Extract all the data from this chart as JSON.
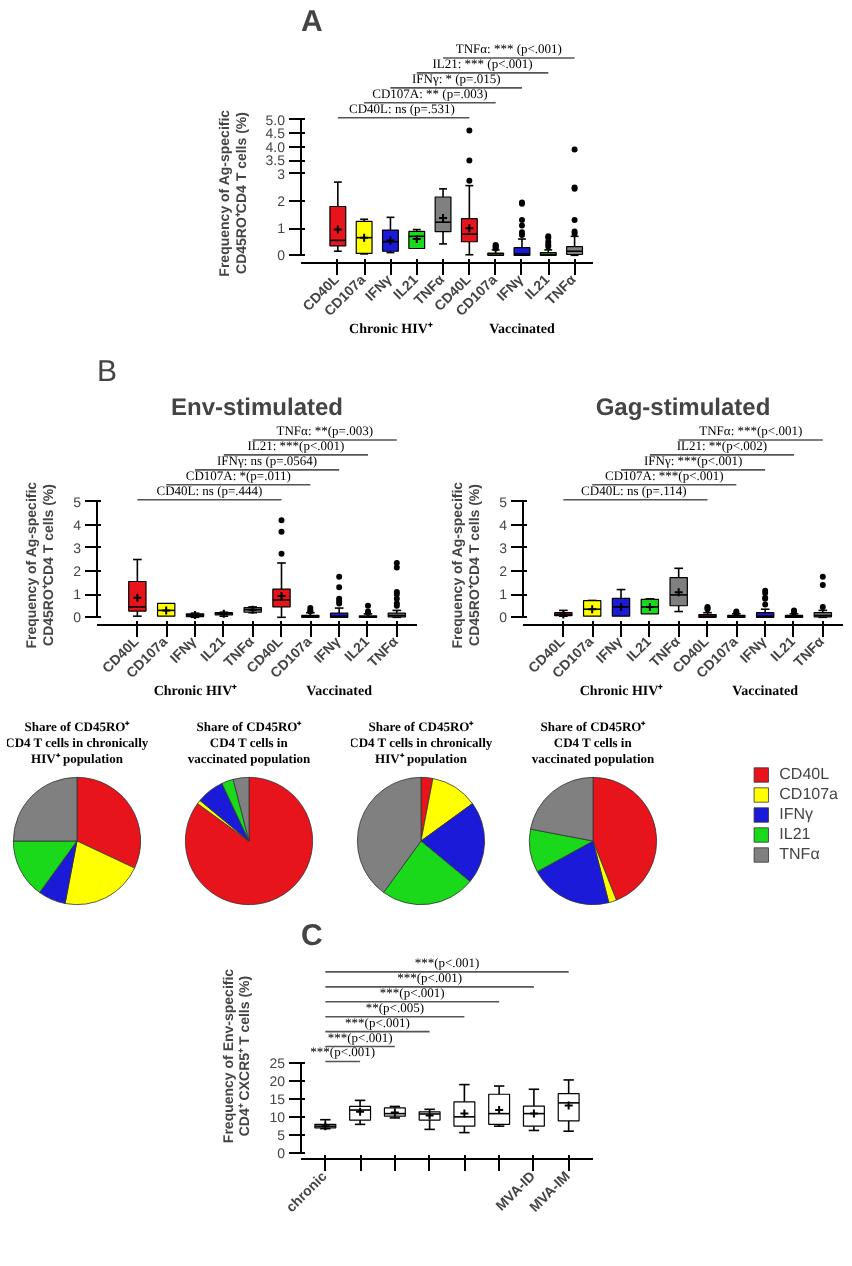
{
  "chart_data": [
    {
      "type": "box",
      "title": "A",
      "ylabel": "Frequency of Ag-specific\nCD45RO⁺CD4 T cells (%)",
      "categories": [
        "CD40L",
        "CD107a",
        "IFNγ",
        "IL21",
        "TNFα",
        "CD40L",
        "CD107a",
        "IFNγ",
        "IL21",
        "TNFα"
      ],
      "ylim": [
        0,
        5
      ],
      "yticks": [
        0,
        1,
        2,
        3,
        {
          "value": 3.5,
          "label": "3.5"
        },
        {
          "value": 4,
          "label": "4.0"
        },
        {
          "value": 4.5,
          "label": "4.5"
        },
        {
          "value": 5,
          "label": "5.0"
        }
      ],
      "marker": "circle",
      "annotations": [
        "CD40L: ns  (p=.531)",
        "CD107A: ** (p=.003)",
        "IFNγ: * (p=.015)",
        "IL21: *** (p<.001)",
        "TNFα: *** (p<.001)",
        "Chronic HIV⁺",
        "Vaccinated"
      ],
      "series": [
        {
          "colors": [
            "#e8141c",
            "#ffff00",
            "#1a1ad8",
            "#1ad81a",
            "#808080",
            "#e8141c",
            "#ffff00",
            "#1a1ad8",
            "#1ad81a",
            "#808080"
          ],
          "boxes": [
            {
              "low": 0.15,
              "q1": 0.35,
              "median": 0.55,
              "q3": 1.8,
              "high": 2.7,
              "mean": 0.95
            },
            {
              "low": 0.05,
              "q1": 0.07,
              "median": 0.65,
              "q3": 1.25,
              "high": 1.33,
              "mean": 0.65
            },
            {
              "low": 0.1,
              "q1": 0.15,
              "median": 0.5,
              "q3": 0.93,
              "high": 1.4,
              "mean": 0.55
            },
            {
              "low": 0.25,
              "q1": 0.25,
              "median": 0.7,
              "q3": 0.88,
              "high": 0.95,
              "mean": 0.6
            },
            {
              "low": 0.42,
              "q1": 0.87,
              "median": 1.22,
              "q3": 2.15,
              "high": 2.45,
              "mean": 1.38
            },
            {
              "low": 0.02,
              "q1": 0.5,
              "median": 0.78,
              "q3": 1.35,
              "high": 2.57,
              "mean": 1.0,
              "outliers": [
                2.75,
                3.5,
                4.6
              ]
            },
            {
              "low": 0,
              "q1": 0,
              "median": 0.05,
              "q3": 0.08,
              "high": 0.2,
              "outliers": [
                0.25,
                0.3,
                0.35,
                0.38
              ]
            },
            {
              "low": 0,
              "q1": 0,
              "median": 0.05,
              "q3": 0.28,
              "high": 0.6,
              "outliers": [
                0.75,
                0.85,
                1.1,
                1.3,
                1.9,
                1.95
              ]
            },
            {
              "low": 0,
              "q1": 0,
              "median": 0.03,
              "q3": 0.1,
              "high": 0.2,
              "outliers": [
                0.32,
                0.4,
                0.5,
                0.65,
                0.7
              ]
            },
            {
              "low": 0,
              "q1": 0.03,
              "median": 0.15,
              "q3": 0.32,
              "high": 0.7,
              "outliers": [
                0.8,
                0.88,
                1.3,
                2.45,
                2.5,
                3.9
              ]
            }
          ]
        }
      ]
    },
    {
      "type": "box",
      "title": "Env-stimulated",
      "ylabel": "Frequency of Ag-specific\nCD45RO⁺CD4 T cells (%)",
      "categories": [
        "CD40L",
        "CD107a",
        "IFNγ",
        "IL21",
        "TNFα",
        "CD40L",
        "CD107a",
        "IFNγ",
        "IL21",
        "TNFα"
      ],
      "ylim": [
        0,
        5
      ],
      "yticks": [
        0,
        1,
        2,
        3,
        4,
        5
      ],
      "marker": "circle",
      "annotations": [
        "B",
        "CD40L: ns (p=.444)",
        "CD107A: *(p=.011)",
        "IFNγ: ns (p=.0564)",
        "IL21: ***(p<.001)",
        "TNFα: **(p=.003)",
        "Chronic HIV⁺",
        "Vaccinated"
      ],
      "series": [
        {
          "colors": [
            "#e8141c",
            "#ffff00",
            "#1a1ad8",
            "#1ad81a",
            "#808080",
            "#e8141c",
            "#ffff00",
            "#1a1ad8",
            "#1ad81a",
            "#808080"
          ],
          "boxes": [
            {
              "low": 0.05,
              "q1": 0.27,
              "median": 0.45,
              "q3": 1.55,
              "high": 2.5,
              "mean": 0.85
            },
            {
              "low": 0.05,
              "q1": 0.05,
              "median": 0.3,
              "q3": 0.6,
              "high": 0.6,
              "mean": 0.3
            },
            {
              "low": 0,
              "q1": 0.03,
              "median": 0.1,
              "q3": 0.15,
              "high": 0.18,
              "mean": 0.1
            },
            {
              "low": 0.05,
              "q1": 0.1,
              "median": 0.15,
              "q3": 0.2,
              "high": 0.22,
              "mean": 0.15
            },
            {
              "low": 0.2,
              "q1": 0.22,
              "median": 0.33,
              "q3": 0.42,
              "high": 0.45,
              "mean": 0.33
            },
            {
              "low": 0,
              "q1": 0.45,
              "median": 0.75,
              "q3": 1.22,
              "high": 2.35,
              "mean": 0.92,
              "outliers": [
                2.75,
                3.7,
                4.2
              ]
            },
            {
              "low": 0,
              "q1": 0,
              "median": 0.03,
              "q3": 0.08,
              "high": 0.2,
              "outliers": [
                0.25,
                0.3,
                0.4
              ]
            },
            {
              "low": 0,
              "q1": 0,
              "median": 0.05,
              "q3": 0.18,
              "high": 0.4,
              "outliers": [
                0.6,
                0.7,
                0.8,
                1.3,
                1.75
              ]
            },
            {
              "low": 0,
              "q1": 0,
              "median": 0.02,
              "q3": 0.06,
              "high": 0.15,
              "outliers": [
                0.2,
                0.25,
                0.5
              ]
            },
            {
              "low": 0,
              "q1": 0.02,
              "median": 0.08,
              "q3": 0.18,
              "high": 0.3,
              "outliers": [
                0.5,
                0.6,
                0.8,
                1.0,
                1.1,
                2.15,
                2.35
              ]
            }
          ]
        }
      ]
    },
    {
      "type": "box",
      "title": "Gag-stimulated",
      "ylabel": "Frequency of Ag-specific\nCD45RO⁺CD4 T cells (%)",
      "categories": [
        "CD40L",
        "CD107a",
        "IFNγ",
        "IL21",
        "TNFα",
        "CD40L",
        "CD107a",
        "IFNγ",
        "IL21",
        "TNFα"
      ],
      "ylim": [
        0,
        5
      ],
      "yticks": [
        0,
        1,
        2,
        3,
        4,
        5
      ],
      "marker": "circle",
      "annotations": [
        "CD40L: ns  (p=.114)",
        "CD107A: ***(p<.001)",
        "IFNγ: ***(p<.001)",
        "IL21: **(p<.002)",
        "TNFα: ***(p<.001)",
        "Chronic HIV⁺",
        "Vaccinated"
      ],
      "series": [
        {
          "colors": [
            "#e8141c",
            "#ffff00",
            "#1a1ad8",
            "#1ad81a",
            "#808080",
            "#e8141c",
            "#ffff00",
            "#1a1ad8",
            "#1ad81a",
            "#808080"
          ],
          "boxes": [
            {
              "low": 0.05,
              "q1": 0.07,
              "median": 0.12,
              "q3": 0.2,
              "high": 0.3,
              "mean": 0.12
            },
            {
              "low": 0.05,
              "q1": 0.05,
              "median": 0.35,
              "q3": 0.72,
              "high": 0.73,
              "mean": 0.35
            },
            {
              "low": 0.05,
              "q1": 0.05,
              "median": 0.45,
              "q3": 0.82,
              "high": 1.2,
              "mean": 0.45
            },
            {
              "low": 0.15,
              "q1": 0.15,
              "median": 0.45,
              "q3": 0.78,
              "high": 0.8,
              "mean": 0.45
            },
            {
              "low": 0.25,
              "q1": 0.5,
              "median": 0.97,
              "q3": 1.72,
              "high": 2.12,
              "mean": 1.08
            },
            {
              "low": 0,
              "q1": 0,
              "median": 0.05,
              "q3": 0.12,
              "high": 0.2,
              "outliers": [
                0.35,
                0.4,
                0.45
              ]
            },
            {
              "low": 0,
              "q1": 0,
              "median": 0.02,
              "q3": 0.08,
              "high": 0.15,
              "outliers": [
                0.2,
                0.25
              ]
            },
            {
              "low": 0,
              "q1": 0,
              "median": 0.05,
              "q3": 0.2,
              "high": 0.35,
              "outliers": [
                0.55,
                0.8,
                0.85,
                1.05,
                1.15
              ]
            },
            {
              "low": 0,
              "q1": 0,
              "median": 0.03,
              "q3": 0.08,
              "high": 0.15,
              "outliers": [
                0.2,
                0.25,
                0.3
              ]
            },
            {
              "low": 0,
              "q1": 0.02,
              "median": 0.08,
              "q3": 0.2,
              "high": 0.3,
              "outliers": [
                0.45,
                1.4,
                1.75
              ]
            }
          ]
        }
      ]
    },
    {
      "type": "pie",
      "title": "Share of CD45RO⁺\nCD4 T cells in chronically\nHIV⁺ population",
      "values": [
        32,
        21,
        7,
        15,
        25
      ],
      "colors": [
        "#e8141c",
        "#ffff00",
        "#1a1ad8",
        "#1ad81a",
        "#808080"
      ]
    },
    {
      "type": "pie",
      "title": "Share of CD45RO⁺\nCD4 T cells in\nvaccinated population",
      "values": [
        85,
        1,
        7,
        3,
        4
      ],
      "colors": [
        "#e8141c",
        "#ffff00",
        "#1a1ad8",
        "#1ad81a",
        "#808080"
      ]
    },
    {
      "type": "pie",
      "title": "Share of CD45RO⁺\nCD4 T cells in chronically\nHIV⁺ population",
      "values": [
        3,
        12,
        21,
        24,
        40
      ],
      "colors": [
        "#e8141c",
        "#ffff00",
        "#1a1ad8",
        "#1ad81a",
        "#808080"
      ]
    },
    {
      "type": "pie",
      "title": "Share of CD45RO⁺\nCD4 T cells in\nvaccinated population",
      "categories": [
        "CD40L",
        "CD107a",
        "IFNγ",
        "IL21",
        "TNFα"
      ],
      "values": [
        44,
        2,
        21,
        11,
        22
      ],
      "colors": [
        "#e8141c",
        "#ffff00",
        "#1a1ad8",
        "#1ad81a",
        "#808080"
      ],
      "legend": "right"
    },
    {
      "type": "box",
      "title": "C",
      "ylabel": "Frequency of Env-specific\nCD4⁺ CXCR5⁺ T cells (%)",
      "categories": [
        "chronic",
        null,
        null,
        null,
        null,
        null,
        "MVA-ID",
        "MVA-IM"
      ],
      "ylim": [
        0,
        25
      ],
      "yticks": [
        0,
        5,
        10,
        15,
        20,
        25
      ],
      "annotations": [
        "***(p<.001)",
        "***(p<.001)",
        "***(p<.001)",
        "**(p<.005)",
        "***(p<.001)",
        "***(p<.001)",
        "***(p<.001)"
      ],
      "series": [
        {
          "colors": [
            "#ffffff",
            "#ffffff",
            "#ffffff",
            "#ffffff",
            "#ffffff",
            "#ffffff",
            "#ffffff",
            "#ffffff"
          ],
          "boxes": [
            {
              "low": 6.8,
              "q1": 7,
              "median": 7.5,
              "q3": 8,
              "high": 9.3,
              "mean": 7.5
            },
            {
              "low": 8,
              "q1": 9.2,
              "median": 12,
              "q3": 13,
              "high": 14.7,
              "mean": 11.5
            },
            {
              "low": 9.8,
              "q1": 10.3,
              "median": 11,
              "q3": 12.6,
              "high": 13,
              "mean": 11.3
            },
            {
              "low": 6.6,
              "q1": 9.2,
              "median": 10.9,
              "q3": 11.5,
              "high": 12.2,
              "mean": 10.5
            },
            {
              "low": 5.7,
              "q1": 7.5,
              "median": 10.1,
              "q3": 14.3,
              "high": 19.1,
              "mean": 11
            },
            {
              "low": 7.5,
              "q1": 8,
              "median": 11,
              "q3": 16.4,
              "high": 18.7,
              "mean": 12
            },
            {
              "low": 6.3,
              "q1": 7.5,
              "median": 11,
              "q3": 13.1,
              "high": 17.8,
              "mean": 11
            },
            {
              "low": 6.1,
              "q1": 9,
              "median": 14,
              "q3": 16.6,
              "high": 20.4,
              "mean": 13.3
            }
          ]
        }
      ]
    }
  ]
}
